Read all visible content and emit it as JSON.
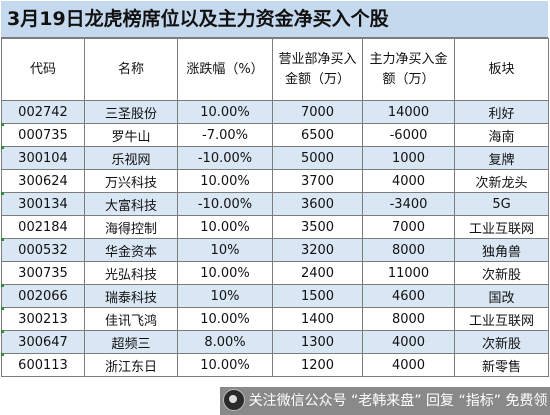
{
  "title": "3月19日龙虎榜席位以及主力资金净买入个股",
  "columns": [
    "代码",
    "名称",
    "涨跌幅（%）",
    "营业部净买入金额（万）",
    "主力净买入金额（万）",
    "板块"
  ],
  "rows": [
    {
      "code": "002742",
      "name": "三圣股份",
      "change": "10.00%",
      "dept_buy": "7000",
      "main_buy": "14000",
      "sector": "利好"
    },
    {
      "code": "000735",
      "name": "罗牛山",
      "change": "-7.00%",
      "dept_buy": "6500",
      "main_buy": "-6000",
      "sector": "海南"
    },
    {
      "code": "300104",
      "name": "乐视网",
      "change": "-10.00%",
      "dept_buy": "5000",
      "main_buy": "1000",
      "sector": "复牌"
    },
    {
      "code": "300624",
      "name": "万兴科技",
      "change": "10.00%",
      "dept_buy": "3700",
      "main_buy": "4000",
      "sector": "次新龙头"
    },
    {
      "code": "300134",
      "name": "大富科技",
      "change": "-10.00%",
      "dept_buy": "3600",
      "main_buy": "-3400",
      "sector": "5G"
    },
    {
      "code": "002184",
      "name": "海得控制",
      "change": "10.00%",
      "dept_buy": "3500",
      "main_buy": "7000",
      "sector": "工业互联网"
    },
    {
      "code": "000532",
      "name": "华金资本",
      "change": "10%",
      "dept_buy": "3200",
      "main_buy": "8000",
      "sector": "独角兽"
    },
    {
      "code": "300735",
      "name": "光弘科技",
      "change": "10.00%",
      "dept_buy": "2400",
      "main_buy": "11000",
      "sector": "次新股"
    },
    {
      "code": "002066",
      "name": "瑞泰科技",
      "change": "10%",
      "dept_buy": "1500",
      "main_buy": "4600",
      "sector": "国改"
    },
    {
      "code": "300213",
      "name": "佳讯飞鸿",
      "change": "10.00%",
      "dept_buy": "1400",
      "main_buy": "8000",
      "sector": "工业互联网"
    },
    {
      "code": "300647",
      "name": "超频三",
      "change": "8.00%",
      "dept_buy": "1300",
      "main_buy": "4000",
      "sector": "次新股"
    },
    {
      "code": "600113",
      "name": "浙江东日",
      "change": "10.00%",
      "dept_buy": "1200",
      "main_buy": "4000",
      "sector": "新零售"
    }
  ],
  "colors": {
    "title_bg": "#c5d9ee",
    "row_alt_bg": "#d9e6f4",
    "grid_line": "#7c7c7c"
  },
  "watermark": {
    "icon": "logo-icon",
    "text": "关注微信公众号 “老韩来盘” 回复 “指标” 免费领"
  }
}
